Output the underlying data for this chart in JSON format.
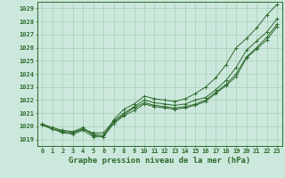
{
  "x": [
    0,
    1,
    2,
    3,
    4,
    5,
    6,
    7,
    8,
    9,
    10,
    11,
    12,
    13,
    14,
    15,
    16,
    17,
    18,
    19,
    20,
    21,
    22,
    23
  ],
  "series": [
    [
      1020.1,
      1019.8,
      1019.6,
      1019.5,
      1019.8,
      1019.5,
      1019.5,
      1020.4,
      1021.0,
      1021.5,
      1022.0,
      1021.8,
      1021.7,
      1021.6,
      1021.7,
      1022.0,
      1022.2,
      1022.8,
      1023.5,
      1024.5,
      1025.8,
      1026.5,
      1027.2,
      1028.2
    ],
    [
      1020.1,
      1019.8,
      1019.6,
      1019.5,
      1019.8,
      1019.4,
      1019.3,
      1020.3,
      1020.9,
      1021.4,
      1021.8,
      1021.6,
      1021.5,
      1021.4,
      1021.5,
      1021.7,
      1022.0,
      1022.6,
      1023.2,
      1024.0,
      1025.3,
      1026.0,
      1026.8,
      1027.8
    ],
    [
      1020.1,
      1019.8,
      1019.5,
      1019.4,
      1019.7,
      1019.2,
      1019.2,
      1020.2,
      1020.8,
      1021.2,
      1021.7,
      1021.5,
      1021.4,
      1021.3,
      1021.4,
      1021.6,
      1021.9,
      1022.5,
      1023.1,
      1023.8,
      1025.2,
      1025.9,
      1026.6,
      1027.6
    ],
    [
      1020.2,
      1019.9,
      1019.7,
      1019.6,
      1019.9,
      1019.3,
      1019.2,
      1020.5,
      1021.3,
      1021.7,
      1022.3,
      1022.1,
      1022.0,
      1021.9,
      1022.1,
      1022.5,
      1023.0,
      1023.7,
      1024.7,
      1026.0,
      1026.7,
      1027.5,
      1028.5,
      1029.3
    ]
  ],
  "line_color": "#2d6a2d",
  "marker_color": "#2d6a2d",
  "bg_color": "#cce8dc",
  "grid_color": "#a8ccb8",
  "xlabel": "Graphe pression niveau de la mer (hPa)",
  "ylim": [
    1018.5,
    1029.5
  ],
  "xlim": [
    -0.5,
    23.5
  ],
  "yticks": [
    1019,
    1020,
    1021,
    1022,
    1023,
    1024,
    1025,
    1026,
    1027,
    1028,
    1029
  ],
  "xticks": [
    0,
    1,
    2,
    3,
    4,
    5,
    6,
    7,
    8,
    9,
    10,
    11,
    12,
    13,
    14,
    15,
    16,
    17,
    18,
    19,
    20,
    21,
    22,
    23
  ],
  "tick_fontsize": 5.0,
  "xlabel_fontsize": 6.5
}
